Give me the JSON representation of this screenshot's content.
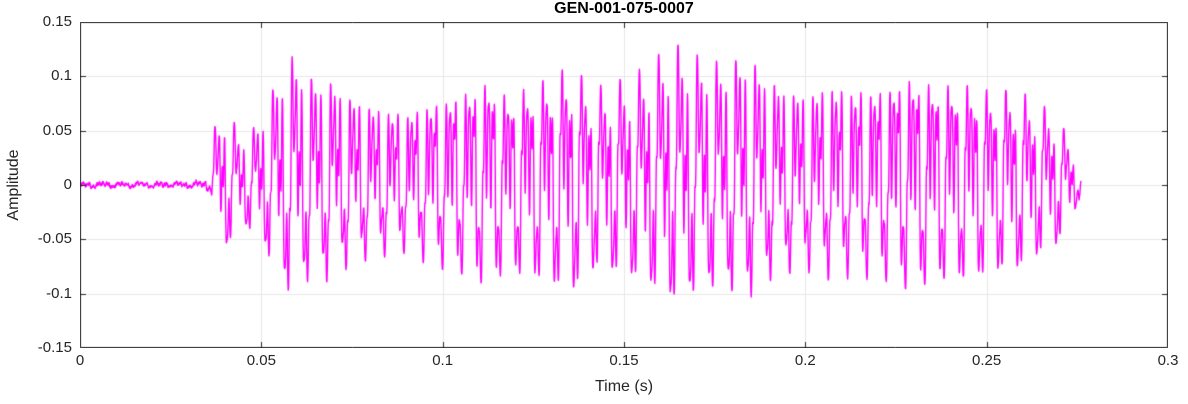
{
  "chart_data": {
    "type": "line",
    "title": "GEN-001-075-0007",
    "xlabel": "Time (s)",
    "ylabel": "Amplitude",
    "xlim": [
      0,
      0.3
    ],
    "ylim": [
      -0.15,
      0.15
    ],
    "x_ticks": [
      0,
      0.05,
      0.1,
      0.15,
      0.2,
      0.25,
      0.3
    ],
    "x_tick_labels": [
      "0",
      "0.05",
      "0.1",
      "0.15",
      "0.2",
      "0.25",
      "0.3"
    ],
    "y_ticks": [
      0.15,
      0.1,
      0.05,
      0,
      -0.05,
      -0.1,
      -0.15
    ],
    "y_tick_labels": [
      "0.15",
      "0.1",
      "0.05",
      "0",
      "-0.05",
      "-0.1",
      "-0.15"
    ],
    "grid": true,
    "line_color": "#FF00FF",
    "grid_color": "#E7E7E7",
    "axis_color": "#262626",
    "background_color": "#FFFFFF",
    "signal": {
      "description": "Speech-like acoustic waveform burst: near-silence until ~0.036 s, abrupt onset, quasi-periodic oscillation (~188 Hz fundamental with harmonics), peak amplitude ~0.145 near t=0.136 s and t=0.163 s, decaying and ending near t=0.276 s",
      "sample_rate": 12000,
      "t_start": 0,
      "t_end": 0.276,
      "seed": 42,
      "burst_start": 0.0365,
      "components": [
        {
          "freq": 188,
          "amp": 0.5,
          "phase": 0.4
        },
        {
          "freq": 376,
          "amp": 0.3,
          "phase": 1.7
        },
        {
          "freq": 752,
          "amp": 0.34,
          "phase": 2.6
        },
        {
          "freq": 1128,
          "amp": 0.2,
          "phase": 0.9
        },
        {
          "freq": 1504,
          "amp": 0.16,
          "phase": 2.0
        }
      ],
      "envelope": [
        [
          0,
          0.0025
        ],
        [
          0.03,
          0.003
        ],
        [
          0.034,
          0.0045
        ],
        [
          0.0362,
          0.008
        ],
        [
          0.037,
          0.055
        ],
        [
          0.04,
          0.075
        ],
        [
          0.044,
          0.045
        ],
        [
          0.048,
          0.05
        ],
        [
          0.052,
          0.075
        ],
        [
          0.056,
          0.105
        ],
        [
          0.059,
          0.115
        ],
        [
          0.063,
          0.1
        ],
        [
          0.068,
          0.105
        ],
        [
          0.075,
          0.095
        ],
        [
          0.082,
          0.09
        ],
        [
          0.09,
          0.085
        ],
        [
          0.097,
          0.095
        ],
        [
          0.105,
          0.1
        ],
        [
          0.112,
          0.11
        ],
        [
          0.118,
          0.095
        ],
        [
          0.125,
          0.11
        ],
        [
          0.131,
          0.13
        ],
        [
          0.136,
          0.145
        ],
        [
          0.142,
          0.12
        ],
        [
          0.149,
          0.128
        ],
        [
          0.156,
          0.133
        ],
        [
          0.163,
          0.145
        ],
        [
          0.17,
          0.125
        ],
        [
          0.177,
          0.115
        ],
        [
          0.184,
          0.13
        ],
        [
          0.191,
          0.11
        ],
        [
          0.199,
          0.105
        ],
        [
          0.207,
          0.115
        ],
        [
          0.214,
          0.105
        ],
        [
          0.221,
          0.1
        ],
        [
          0.229,
          0.105
        ],
        [
          0.237,
          0.095
        ],
        [
          0.245,
          0.1
        ],
        [
          0.252,
          0.098
        ],
        [
          0.258,
          0.105
        ],
        [
          0.264,
          0.09
        ],
        [
          0.269,
          0.078
        ],
        [
          0.272,
          0.055
        ],
        [
          0.2745,
          0.03
        ],
        [
          0.276,
          0.012
        ]
      ]
    }
  }
}
